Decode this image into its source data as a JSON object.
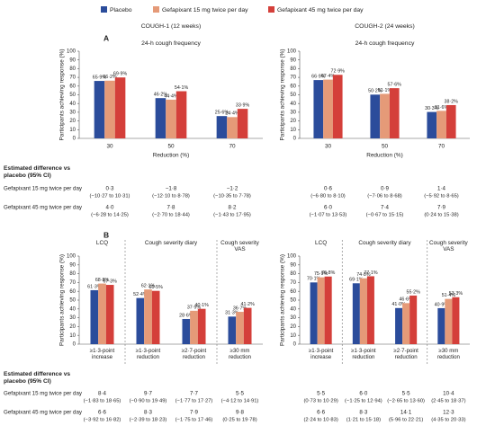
{
  "legend": [
    {
      "name": "Placebo",
      "color": "#2b4c9b"
    },
    {
      "name": "Gefapixant 15 mg twice per day",
      "color": "#e59a78"
    },
    {
      "name": "Gefapixant 45 mg twice per day",
      "color": "#d43f3a"
    }
  ],
  "panels": [
    {
      "label": "A",
      "heading": "Estimated difference vs placebo (95% CI)",
      "row_labels": [
        "Gefapixant 15 mg twice per day",
        "Gefapixant 45 mg twice per day"
      ]
    },
    {
      "label": "B",
      "heading": "Estimated difference vs placebo (95% CI)",
      "row_labels": [
        "Gefapixant 15 mg twice per day",
        "Gefapixant 45 mg twice per day"
      ]
    }
  ],
  "chart_data": [
    {
      "type": "bar",
      "title": "COUGH-1 (12 weeks)",
      "subtitle": "24-h cough frequency",
      "ylabel": "Participants achieving response (%)",
      "xlabel": "Reduction (%)",
      "categories": [
        "30",
        "50",
        "70"
      ],
      "ylim": [
        0,
        100
      ],
      "yticks": [
        0,
        10,
        20,
        30,
        40,
        50,
        60,
        70,
        80,
        90,
        100
      ],
      "series": [
        {
          "values": [
            65.9,
            46.2,
            25.6
          ],
          "value_labels": [
            "65·9%",
            "46·2%",
            "25·6%"
          ]
        },
        {
          "values": [
            66.2,
            44.4,
            24.4
          ],
          "value_labels": [
            "66·2%",
            "44·4%",
            "24·4%"
          ]
        },
        {
          "values": [
            69.9,
            54.1,
            33.9
          ],
          "value_labels": [
            "69·9%",
            "54·1%",
            "33·9%"
          ]
        }
      ],
      "differences": [
        [
          [
            "0·3",
            "(−10·27 to 10·31)"
          ],
          [
            "−1·8",
            "(−12·10 to 8·78)"
          ],
          [
            "−1·2",
            "(−10·35 to 7·78)"
          ]
        ],
        [
          [
            "4·0",
            "(−6·28 to 14·25)"
          ],
          [
            "7·8",
            "(−2·70 to 18·44)"
          ],
          [
            "8·2",
            "(−1·43 to 17·95)"
          ]
        ]
      ]
    },
    {
      "type": "bar",
      "title": "COUGH-2 (24 weeks)",
      "subtitle": "24-h cough frequency",
      "ylabel": "Participants achieving response (%)",
      "xlabel": "Reduction (%)",
      "categories": [
        "30",
        "50",
        "70"
      ],
      "ylim": [
        0,
        100
      ],
      "yticks": [
        0,
        10,
        20,
        30,
        40,
        50,
        60,
        70,
        80,
        90,
        100
      ],
      "series": [
        {
          "values": [
            66.9,
            50.2,
            30.3
          ],
          "value_labels": [
            "66·9%",
            "50·2%",
            "30·3%"
          ]
        },
        {
          "values": [
            67.4,
            51.1,
            31.6
          ],
          "value_labels": [
            "67·4%",
            "51·1%",
            "31·6%"
          ]
        },
        {
          "values": [
            72.9,
            57.6,
            38.2
          ],
          "value_labels": [
            "72·9%",
            "57·6%",
            "38·2%"
          ]
        }
      ],
      "differences": [
        [
          [
            "0·6",
            "(−6·80 to 8·10)"
          ],
          [
            "0·9",
            "(−7·06 to 8·68)"
          ],
          [
            "1·4",
            "(−5·92 to 8·65)"
          ]
        ],
        [
          [
            "6·0",
            "(−1·07 to 13·53)"
          ],
          [
            "7·4",
            "(−0·67 to 15·15)"
          ],
          [
            "7·9",
            "(0·24 to 15·38)"
          ]
        ]
      ]
    },
    {
      "type": "bar",
      "ylabel": "Participants achieving response (%)",
      "groups": [
        "LCQ",
        "Cough severity diary",
        null,
        "Cough severity VAS"
      ],
      "categories": [
        "≥1·3-point increase",
        "≥1·3-point reduction",
        "≥2·7-point reduction",
        "≥30 mm reduction"
      ],
      "ylim": [
        0,
        100
      ],
      "yticks": [
        0,
        10,
        20,
        30,
        40,
        50,
        60,
        70,
        80,
        90,
        100
      ],
      "series": [
        {
          "values": [
            61.3,
            52.4,
            28.6,
            31.3
          ],
          "value_labels": [
            "61·3%",
            "52·4%",
            "28·6%",
            "31·3%"
          ]
        },
        {
          "values": [
            68.8,
            62.1,
            37.9,
            36.7
          ],
          "value_labels": [
            "68·8%",
            "62·1%",
            "37·9%",
            "36·7%"
          ]
        },
        {
          "values": [
            67.3,
            60.5,
            40.1,
            41.2
          ],
          "value_labels": [
            "67·3%",
            "60·5%",
            "40·1%",
            "41·2%"
          ]
        }
      ],
      "differences": [
        [
          [
            "8·4",
            "(−1·83 to 18·65)"
          ],
          [
            "9·7",
            "(−0·90 to 19·49)"
          ],
          [
            "7·7",
            "(−1·77 to 17·27)"
          ],
          [
            "5·5",
            "(−4·12 to 14·91)"
          ]
        ],
        [
          [
            "6·6",
            "(−3·92 to 16·82)"
          ],
          [
            "8·3",
            "(−2·39 to 18·23)"
          ],
          [
            "7·9",
            "(−1·75 to 17·46)"
          ],
          [
            "9·8",
            "(0·25 to 19·78)"
          ]
        ]
      ]
    },
    {
      "type": "bar",
      "ylabel": "Participants achieving response (%)",
      "groups": [
        "LCQ",
        "Cough severity diary",
        null,
        "Cough severity VAS"
      ],
      "categories": [
        "≥1·3-point increase",
        "≥1·3-point reduction",
        "≥2·7-point reduction",
        "≥30 mm reduction"
      ],
      "ylim": [
        0,
        100
      ],
      "yticks": [
        0,
        10,
        20,
        30,
        40,
        50,
        60,
        70,
        80,
        90,
        100
      ],
      "series": [
        {
          "values": [
            70.1,
            69.1,
            41.0,
            40.9
          ],
          "value_labels": [
            "70·1%",
            "69·1%",
            "41·0%",
            "40·9%"
          ]
        },
        {
          "values": [
            75.9,
            74.8,
            46.6,
            51.4
          ],
          "value_labels": [
            "75·9%",
            "74·8%",
            "46·6%",
            "51·4%"
          ]
        },
        {
          "values": [
            76.8,
            77.1,
            55.2,
            53.3
          ],
          "value_labels": [
            "76·8%",
            "77·1%",
            "55·2%",
            "53·3%"
          ]
        }
      ],
      "differences": [
        [
          [
            "5·5",
            "(0·73 to 10·29)"
          ],
          [
            "6·0",
            "(−1·25 to 12·94)"
          ],
          [
            "5·5",
            "(−2·65 to 13·60)"
          ],
          [
            "10·4",
            "(2·45 to 18·37)"
          ]
        ],
        [
          [
            "6·6",
            "(2·24 to 10·83)"
          ],
          [
            "8·3",
            "(1·21 to 15·18)"
          ],
          [
            "14·1",
            "(5·96 to 22·21)"
          ],
          [
            "12·3",
            "(4·35 to 20·33)"
          ]
        ]
      ]
    }
  ]
}
